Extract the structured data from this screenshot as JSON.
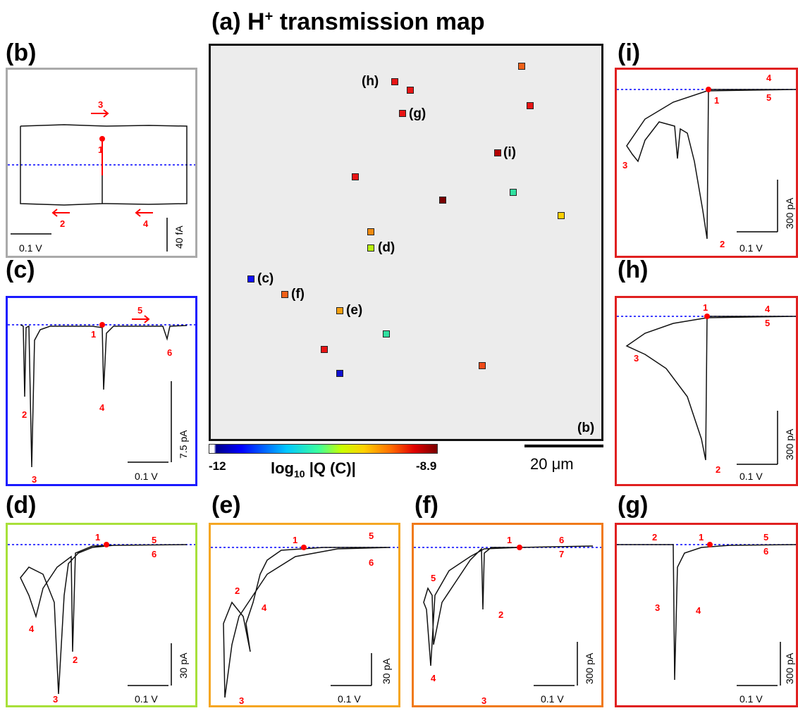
{
  "title": {
    "main": "(a) H",
    "sup": "+",
    "rest": " transmission map"
  },
  "map": {
    "corner_label": "(b)",
    "point_labels": {
      "c": "(c)",
      "d": "(d)",
      "e": "(e)",
      "f": "(f)",
      "g": "(g)",
      "h": "(h)",
      "i": "(i)"
    },
    "colorbar": {
      "min": "-12",
      "max": "-8.9",
      "label_a": "log",
      "label_sub": "10",
      "label_b": " |Q (C)|"
    },
    "scalebar": "20 μm"
  },
  "panels": {
    "b": {
      "label": "(b)",
      "x": "0.1 V",
      "y": "40 fA"
    },
    "c": {
      "label": "(c)",
      "x": "0.1 V",
      "y": "7.5 pA"
    },
    "d": {
      "label": "(d)",
      "x": "0.1 V",
      "y": "30 pA"
    },
    "e": {
      "label": "(e)",
      "x": "0.1 V",
      "y": "30 pA"
    },
    "f": {
      "label": "(f)",
      "x": "0.1 V",
      "y": "300 pA"
    },
    "g": {
      "label": "(g)",
      "x": "0.1 V",
      "y": "300 pA"
    },
    "h": {
      "label": "(h)",
      "x": "0.1 V",
      "y": "300 pA"
    },
    "i": {
      "label": "(i)",
      "x": "0.1 V",
      "y": "300 pA"
    }
  },
  "step_numbers": [
    "1",
    "2",
    "3",
    "4",
    "5",
    "6",
    "7"
  ],
  "colors": {
    "b": "#aaaaaa",
    "c": "#1a1aff",
    "d": "#a8e03a",
    "e": "#f5a623",
    "f": "#f07a1a",
    "g": "#e02020",
    "h": "#e02020",
    "i": "#e02020",
    "arrow": "#ff0000",
    "baseline": "#0000ff"
  }
}
